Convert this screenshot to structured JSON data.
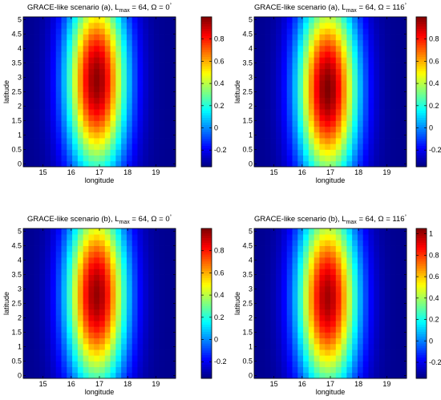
{
  "chart_data": [
    {
      "type": "heatmap",
      "title": {
        "pre": "GRACE-like scenario (a), L",
        "sub": "max",
        "post": " = 64, Ω = 0",
        "sup": "°"
      },
      "xlabel": "longitude",
      "ylabel": "latitude",
      "xlim": [
        14.3,
        19.7
      ],
      "ylim": [
        -0.1,
        5.1
      ],
      "xticks": [
        "15",
        "16",
        "17",
        "18",
        "19"
      ],
      "yticks": [
        "0",
        "0.5",
        "1",
        "1.5",
        "2",
        "2.5",
        "3",
        "3.5",
        "4",
        "4.5",
        "5"
      ],
      "colorbar": {
        "min": -0.35,
        "max": 1.0,
        "ticks": [
          "-0.2",
          "0",
          "0.2",
          "0.4",
          "0.6",
          "0.8"
        ]
      },
      "field": {
        "peak_lon": 16.9,
        "peak_lat": 2.9,
        "peak_value": 0.98,
        "min_value": -0.33,
        "lon_width": 1.05,
        "lat_width": 3.2
      }
    },
    {
      "type": "heatmap",
      "title": {
        "pre": "GRACE-like scenario (a), L",
        "sub": "max",
        "post": " = 64, Ω = 116",
        "sup": "°"
      },
      "xlabel": "longitude",
      "ylabel": "latitude",
      "xlim": [
        14.3,
        19.7
      ],
      "ylim": [
        -0.1,
        5.1
      ],
      "xticks": [
        "15",
        "16",
        "17",
        "18",
        "19"
      ],
      "yticks": [
        "0",
        "0.5",
        "1",
        "1.5",
        "2",
        "2.5",
        "3",
        "3.5",
        "4",
        "4.5",
        "5"
      ],
      "colorbar": {
        "min": -0.35,
        "max": 1.0,
        "ticks": [
          "-0.2",
          "0",
          "0.2",
          "0.4",
          "0.6",
          "0.8"
        ]
      },
      "field": {
        "peak_lon": 16.9,
        "peak_lat": 2.6,
        "peak_value": 1.0,
        "min_value": -0.33,
        "lon_width": 1.05,
        "lat_width": 3.2
      }
    },
    {
      "type": "heatmap",
      "title": {
        "pre": "GRACE-like scenario (b), L",
        "sub": "max",
        "post": " = 64, Ω = 0",
        "sup": "°"
      },
      "xlabel": "longitude",
      "ylabel": "latitude",
      "xlim": [
        14.3,
        19.7
      ],
      "ylim": [
        -0.1,
        5.1
      ],
      "xticks": [
        "15",
        "16",
        "17",
        "18",
        "19"
      ],
      "yticks": [
        "0",
        "0.5",
        "1",
        "1.5",
        "2",
        "2.5",
        "3",
        "3.5",
        "4",
        "4.5",
        "5"
      ],
      "colorbar": {
        "min": -0.35,
        "max": 1.0,
        "ticks": [
          "-0.2",
          "0",
          "0.2",
          "0.4",
          "0.6",
          "0.8"
        ]
      },
      "field": {
        "peak_lon": 16.9,
        "peak_lat": 2.8,
        "peak_value": 0.97,
        "min_value": -0.33,
        "lon_width": 1.05,
        "lat_width": 3.2
      }
    },
    {
      "type": "heatmap",
      "title": {
        "pre": "GRACE-like scenario (b), L",
        "sub": "max",
        "post": " = 64, Ω = 116",
        "sup": "°"
      },
      "xlabel": "longitude",
      "ylabel": "latitude",
      "xlim": [
        14.3,
        19.7
      ],
      "ylim": [
        -0.1,
        5.1
      ],
      "xticks": [
        "15",
        "16",
        "17",
        "18",
        "19"
      ],
      "yticks": [
        "0",
        "0.5",
        "1",
        "1.5",
        "2",
        "2.5",
        "3",
        "3.5",
        "4",
        "4.5",
        "5"
      ],
      "colorbar": {
        "min": -0.35,
        "max": 1.05,
        "ticks": [
          "-0.2",
          "0",
          "0.2",
          "0.4",
          "0.6",
          "0.8",
          "1"
        ]
      },
      "field": {
        "peak_lon": 16.9,
        "peak_lat": 2.7,
        "peak_value": 1.0,
        "min_value": -0.33,
        "lon_width": 1.05,
        "lat_width": 3.2
      }
    }
  ]
}
